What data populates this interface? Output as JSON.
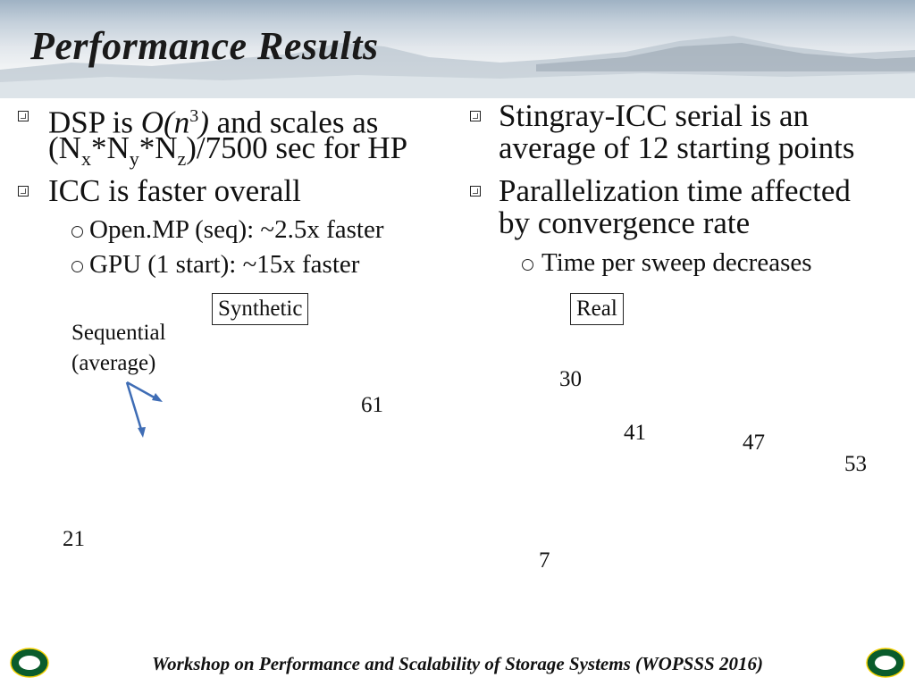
{
  "slide": {
    "title": "Performance Results",
    "left_bullets": [
      {
        "line1_pre": "DSP is ",
        "line1_italic": "O(n",
        "line1_sup": "3",
        "line1_italic_end": ")",
        "line1_post": " and scales as",
        "line2_a": "(N",
        "line2_sub1": "x",
        "line2_b": "*N",
        "line2_sub2": "y",
        "line2_c": "*N",
        "line2_sub3": "z",
        "line2_d": ")/7500 sec for HP"
      },
      {
        "text": "ICC is faster overall"
      }
    ],
    "left_sub_bullets": [
      "Open.MP (seq): ~2.5x faster",
      "GPU (1 start): ~15x faster"
    ],
    "right_bullets": [
      {
        "line1": "Stingray-ICC serial is an",
        "line2": "average of 12 starting points"
      },
      {
        "line1": "Parallelization time affected",
        "line2": "by convergence rate"
      }
    ],
    "right_sub_bullets": [
      "Time per sweep decreases"
    ],
    "labels": {
      "synthetic": "Synthetic",
      "real": "Real",
      "sequential_line1": "Sequential",
      "sequential_line2": "(average)"
    },
    "numbers": {
      "n21": "21",
      "n61": "61",
      "n30": "30",
      "n41": "41",
      "n47": "47",
      "n53": "53",
      "n7": "7"
    },
    "footer": "Workshop on Performance and Scalability of Storage Systems (WOPSSS 2016)",
    "logo_letter": "O",
    "colors": {
      "logo_green": "#0a5c2c",
      "logo_yellow": "#f4d000",
      "arrow_blue": "#3f6db5"
    }
  }
}
